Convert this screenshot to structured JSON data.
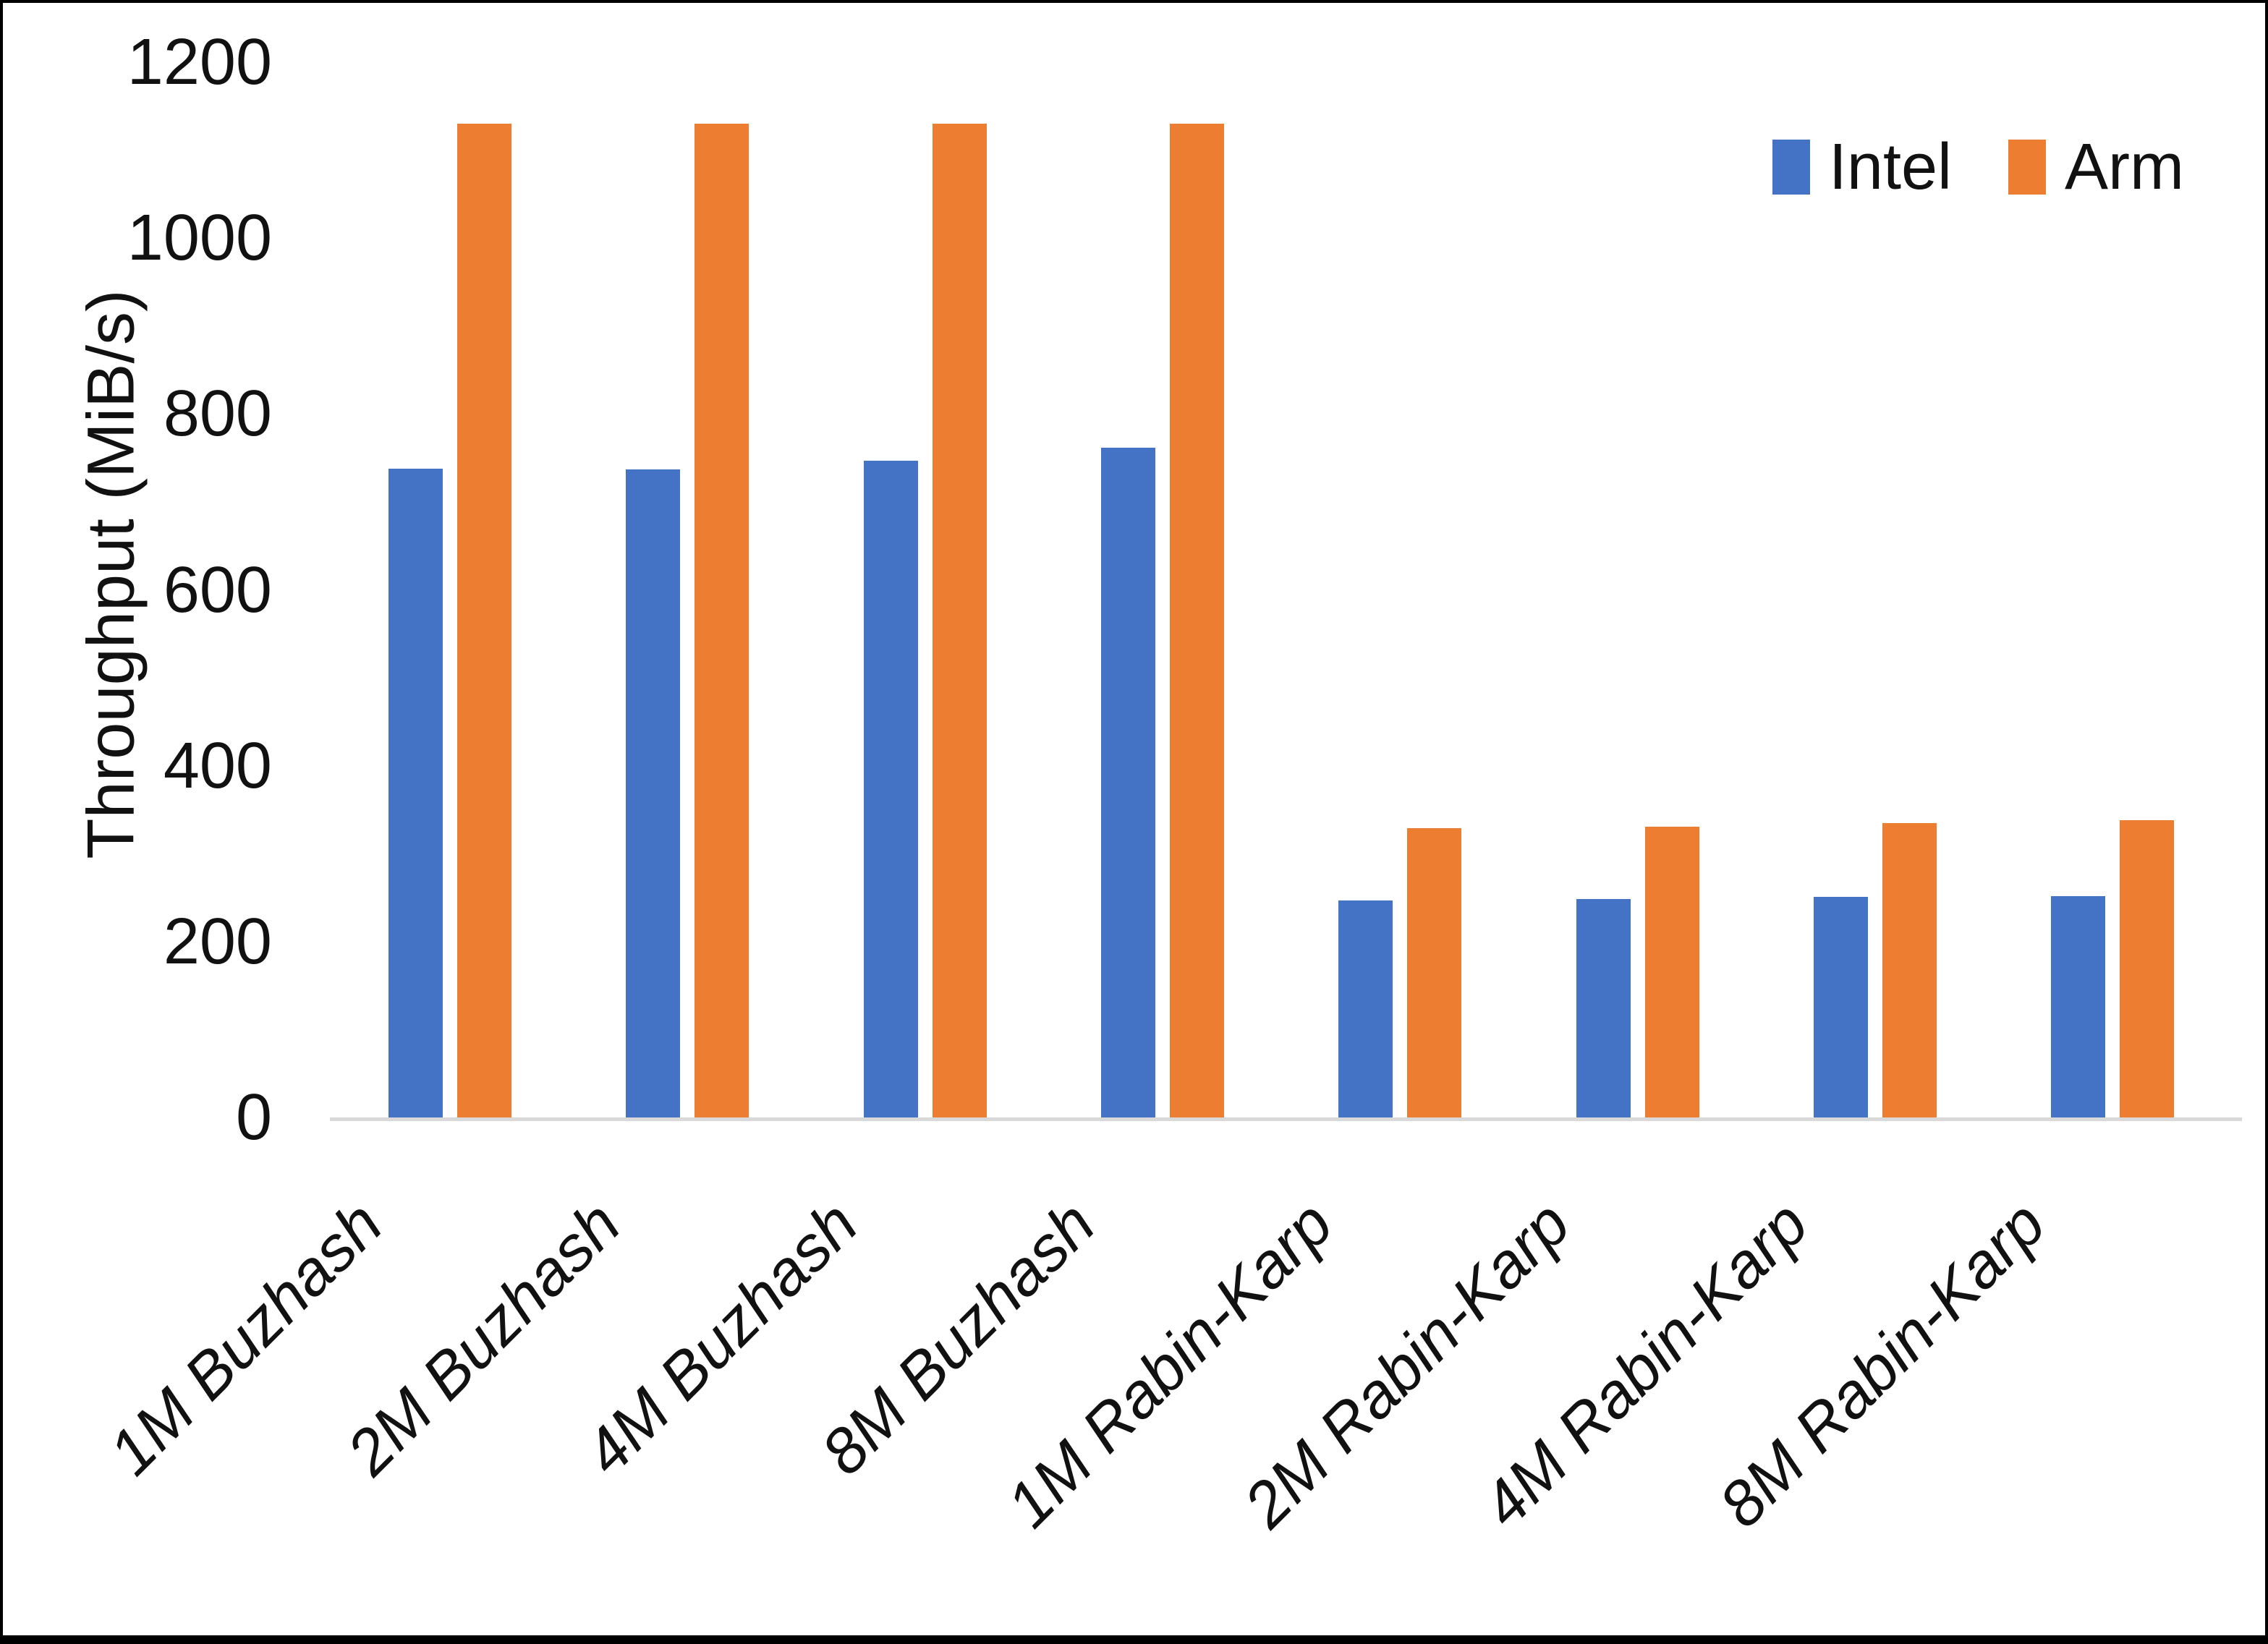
{
  "chart_data": {
    "type": "bar",
    "title": "",
    "xlabel": "",
    "ylabel": "Throughput (MiB/s)",
    "categories": [
      "1M Buzhash",
      "2M Buzhash",
      "4M Buzhash",
      "8M Buzhash",
      "1M Rabin-Karp",
      "2M Rabin-Karp",
      "4M Rabin-Karp",
      "8M Rabin-Karp"
    ],
    "series": [
      {
        "name": "Intel",
        "color": "#4472C4",
        "values": [
          738,
          737,
          747,
          762,
          247,
          248,
          251,
          252
        ]
      },
      {
        "name": "Arm",
        "color": "#ED7D31",
        "values": [
          1130,
          1130,
          1130,
          1130,
          329,
          331,
          335,
          338
        ]
      }
    ],
    "y_axis": {
      "min": 0,
      "max": 1200,
      "tick_step": 200,
      "ticks": [
        0,
        200,
        400,
        600,
        800,
        1000,
        1200
      ]
    },
    "legend_position": "top-right",
    "grid": false,
    "axis_line_color": "#D9D9D9",
    "text_color": "#111111",
    "background_color": "#FFFFFF",
    "frame_color": "#000000"
  }
}
